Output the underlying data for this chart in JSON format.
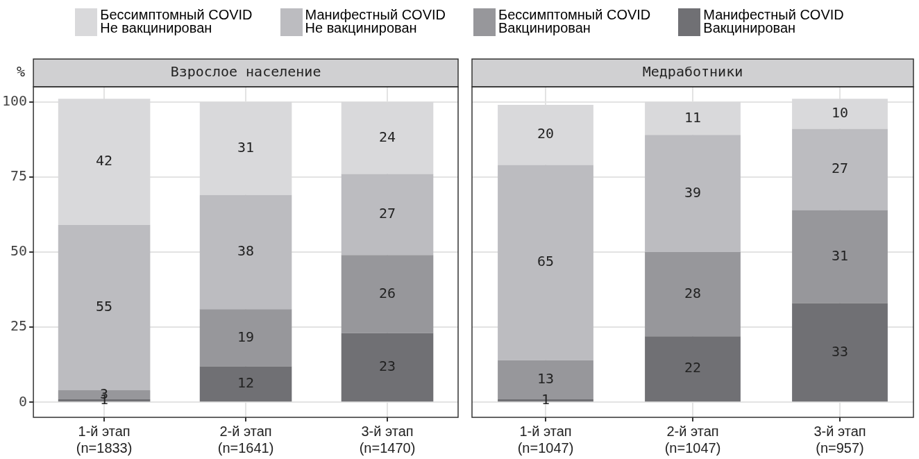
{
  "chart_data": [
    {
      "type": "bar",
      "stacked": true,
      "title": "Взрослое население",
      "ylabel": "%",
      "categories": [
        "1-й этап\n(n=1833)",
        "2-й этап\n(n=1641)",
        "3-й этап\n(n=1470)"
      ],
      "series": [
        {
          "name": "Манифестный COVID\nВакцинирован",
          "color": "#707074",
          "values": [
            1,
            12,
            23
          ]
        },
        {
          "name": "Бессимптомный COVID\nВакцинирован",
          "color": "#97979b",
          "values": [
            3,
            19,
            26
          ]
        },
        {
          "name": "Манифестный COVID\nНе вакцинирован",
          "color": "#bcbcc0",
          "values": [
            55,
            38,
            27
          ]
        },
        {
          "name": "Бессимптомный COVID\nНе вакцинирован",
          "color": "#d9d9db",
          "values": [
            42,
            31,
            24
          ]
        }
      ],
      "ylim": [
        -5,
        105
      ],
      "yticks": [
        0,
        25,
        50,
        75,
        100
      ],
      "grid": true,
      "legend": "top",
      "data_labels": true
    },
    {
      "type": "bar",
      "stacked": true,
      "title": "Медработники",
      "categories": [
        "1-й этап\n(n=1047)",
        "2-й этап\n(n=1047)",
        "3-й этап\n(n=957)"
      ],
      "series": [
        {
          "color": "#707074",
          "values": [
            1,
            22,
            33
          ]
        },
        {
          "color": "#97979b",
          "values": [
            13,
            28,
            31
          ]
        },
        {
          "color": "#bcbcc0",
          "values": [
            65,
            39,
            27
          ]
        },
        {
          "color": "#d9d9db",
          "values": [
            20,
            11,
            10
          ]
        }
      ],
      "ylim": [
        -5,
        105
      ],
      "yticks": [
        0,
        25,
        50,
        75,
        100
      ],
      "grid": true,
      "tick_labels": "x",
      "data_labels": true
    }
  ]
}
